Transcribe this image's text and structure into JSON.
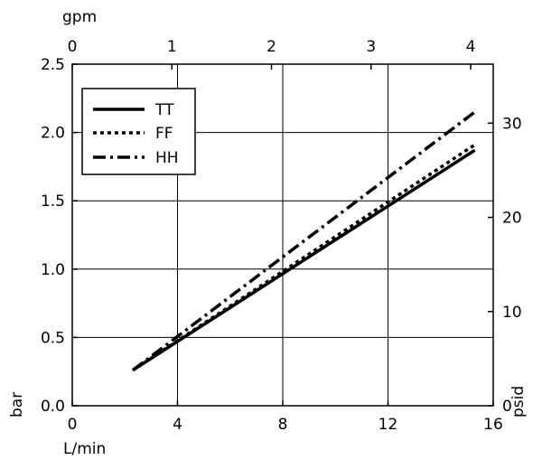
{
  "chart_data": {
    "type": "line",
    "title": "",
    "xlabel": "L/min",
    "ylabel": "bar",
    "x2label": "gpm",
    "y2label": "psid",
    "xlim": [
      0,
      16
    ],
    "ylim": [
      0,
      2.5
    ],
    "x2lim": [
      0,
      4.2267
    ],
    "y2lim": [
      0,
      36.26
    ],
    "xticks": [
      0,
      4,
      8,
      12,
      16
    ],
    "yticks": [
      0.0,
      0.5,
      1.0,
      1.5,
      2.0,
      2.5
    ],
    "x2ticks": [
      0,
      1,
      2,
      3,
      4
    ],
    "y2ticks": [
      0,
      10,
      20,
      30
    ],
    "xtick_labels": [
      "0",
      "4",
      "8",
      "12",
      "16"
    ],
    "ytick_labels": [
      "0.0",
      "0.5",
      "1.0",
      "1.5",
      "2.0",
      "2.5"
    ],
    "x2tick_labels": [
      "0",
      "1",
      "2",
      "3",
      "4"
    ],
    "y2tick_labels": [
      "0",
      "10",
      "20",
      "30"
    ],
    "grid": true,
    "legend_position": "top-left",
    "series": [
      {
        "name": "TT",
        "style": "solid",
        "x": [
          2.3,
          15.3
        ],
        "y": [
          0.26,
          1.87
        ]
      },
      {
        "name": "FF",
        "style": "dotted",
        "x": [
          2.3,
          15.3
        ],
        "y": [
          0.26,
          1.91
        ]
      },
      {
        "name": "HH",
        "style": "dashdot",
        "x": [
          2.3,
          15.3
        ],
        "y": [
          0.26,
          2.15
        ]
      }
    ]
  }
}
